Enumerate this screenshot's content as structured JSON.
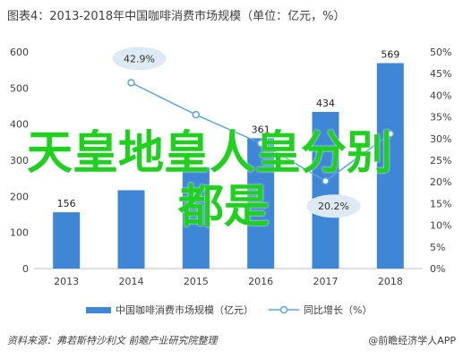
{
  "chart_data": {
    "type": "bar",
    "title": "图表4：2013-2018年中国咖啡消费市场规模（单位：亿元，%）",
    "categories": [
      "2013",
      "2014",
      "2015",
      "2016",
      "2017",
      "2018"
    ],
    "series": [
      {
        "name": "中国咖啡消费市场规模（亿元）",
        "type": "bar",
        "axis": "left",
        "values": [
          156,
          217,
          280,
          361,
          434,
          569
        ],
        "labels": [
          "156",
          "",
          "",
          "361",
          "434",
          "569"
        ]
      },
      {
        "name": "同比增长（%）",
        "type": "line",
        "axis": "right",
        "values": [
          null,
          42.9,
          35.5,
          28.9,
          20.2,
          31.1
        ],
        "labels": [
          "",
          "42.9%",
          "",
          "",
          "20.2%",
          ""
        ]
      }
    ],
    "ylim": [
      0,
      600
    ],
    "yticks": [
      0,
      100,
      200,
      300,
      400,
      500,
      600
    ],
    "y2lim": [
      0,
      50
    ],
    "y2ticks": [
      "0%",
      "5%",
      "10%",
      "15%",
      "20%",
      "25%",
      "30%",
      "35%",
      "40%",
      "45%",
      "50%"
    ],
    "grid": false,
    "legend_position": "bottom",
    "colors": {
      "bar": "#3f87d6",
      "line": "#5ba3e0",
      "callout": "#dde9f3"
    }
  },
  "overlay_text": {
    "line1": "天皇地皇人皇分别",
    "line2": "都是"
  },
  "legend": {
    "bar": "中国咖啡消费市场规模（亿元）",
    "line": "同比增长（%）"
  },
  "source": "资料来源：弗若斯特沙利文 前瞻产业研究院整理",
  "credit": "@前瞻经济学人APP"
}
